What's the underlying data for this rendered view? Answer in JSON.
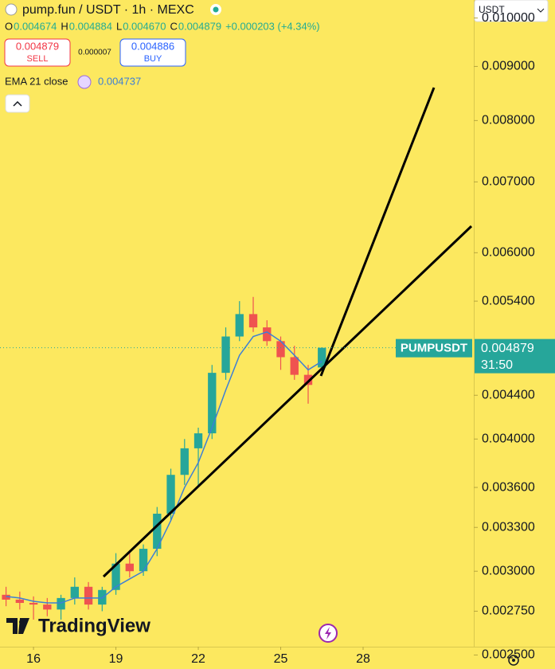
{
  "toolbar": {
    "symbol_title": "pump.fun / USDT · 1h · MEXC",
    "ohlc": [
      {
        "key": "O",
        "value": "0.004674"
      },
      {
        "key": "H",
        "value": "0.004884"
      },
      {
        "key": "L",
        "value": "0.004670"
      },
      {
        "key": "C",
        "value": "0.004879"
      }
    ],
    "change": "+0.000203 (+4.34%)",
    "sell_price": "0.004879",
    "sell_label": "SELL",
    "spread": "0.000007",
    "buy_price": "0.004886",
    "buy_label": "BUY",
    "indicator_name": "EMA 21 close",
    "indicator_value": "0.004737",
    "currency": "USDT",
    "logo_text": "TradingView"
  },
  "chart_data": {
    "type": "candlestick",
    "log_scale": true,
    "x": [
      15,
      15.5,
      16,
      16.5,
      17,
      17.5,
      18,
      18.5,
      19,
      19.5,
      20,
      20.5,
      21,
      21.5,
      22,
      22.5,
      23,
      23.5,
      24,
      24.5,
      25,
      25.5,
      26,
      26.5
    ],
    "open": [
      0.00285,
      0.00282,
      0.0028,
      0.00279,
      0.00276,
      0.00283,
      0.0029,
      0.00279,
      0.00288,
      0.00305,
      0.003,
      0.00315,
      0.0034,
      0.0037,
      0.00392,
      0.00405,
      0.00462,
      0.005,
      0.00525,
      0.0051,
      0.00495,
      0.00478,
      0.0046,
      0.004674
    ],
    "high": [
      0.0029,
      0.00287,
      0.00284,
      0.00283,
      0.00285,
      0.00296,
      0.00293,
      0.0029,
      0.00312,
      0.00312,
      0.00318,
      0.00345,
      0.00375,
      0.004,
      0.0041,
      0.0047,
      0.0051,
      0.0054,
      0.00545,
      0.00518,
      0.005,
      0.0049,
      0.0047,
      0.004884
    ],
    "low": [
      0.00278,
      0.00276,
      0.0027,
      0.00272,
      0.0027,
      0.00279,
      0.00276,
      0.00275,
      0.00285,
      0.00296,
      0.00297,
      0.0031,
      0.00335,
      0.00362,
      0.0036,
      0.004,
      0.00455,
      0.00495,
      0.00505,
      0.0049,
      0.00465,
      0.00455,
      0.00432,
      0.00467
    ],
    "close": [
      0.00282,
      0.0028,
      0.00279,
      0.00276,
      0.00283,
      0.0029,
      0.00279,
      0.00288,
      0.00305,
      0.003,
      0.00315,
      0.0034,
      0.0037,
      0.00392,
      0.00405,
      0.00462,
      0.005,
      0.00525,
      0.0051,
      0.00495,
      0.00478,
      0.0046,
      0.0045,
      0.004879
    ],
    "up_color": "#26a69a",
    "down_color": "#ef5350",
    "series": [
      {
        "name": "EMA 21 close",
        "color": "#3d7fd6",
        "values": [
          0.00284,
          0.00283,
          0.00281,
          0.0028,
          0.0028,
          0.00283,
          0.00283,
          0.00283,
          0.0029,
          0.00295,
          0.003,
          0.00315,
          0.00335,
          0.0036,
          0.0038,
          0.0041,
          0.00445,
          0.0048,
          0.005,
          0.00505,
          0.00495,
          0.0048,
          0.00465,
          0.004737
        ]
      }
    ],
    "last_price": {
      "value": 0.004879,
      "symbol": "PUMPUSDT",
      "label": "0.004879",
      "countdown": "31:50"
    },
    "xlim": [
      14.78,
      32.03
    ],
    "xticks": [
      16,
      19,
      22,
      25,
      28
    ],
    "ylim": [
      0.0025455,
      0.0104
    ],
    "yticks": [
      {
        "value": 0.01,
        "label": "0.010000"
      },
      {
        "value": 0.009,
        "label": "0.009000"
      },
      {
        "value": 0.008,
        "label": "0.008000"
      },
      {
        "value": 0.007,
        "label": "0.007000"
      },
      {
        "value": 0.006,
        "label": "0.006000"
      },
      {
        "value": 0.0054,
        "label": "0.005400"
      },
      {
        "value": 0.0044,
        "label": "0.004400"
      },
      {
        "value": 0.004,
        "label": "0.004000"
      },
      {
        "value": 0.0036,
        "label": "0.003600"
      },
      {
        "value": 0.0033,
        "label": "0.003300"
      },
      {
        "value": 0.003,
        "label": "0.003000"
      },
      {
        "value": 0.00275,
        "label": "0.002750"
      },
      {
        "value": 0.0025,
        "label": "0.002500"
      }
    ]
  }
}
